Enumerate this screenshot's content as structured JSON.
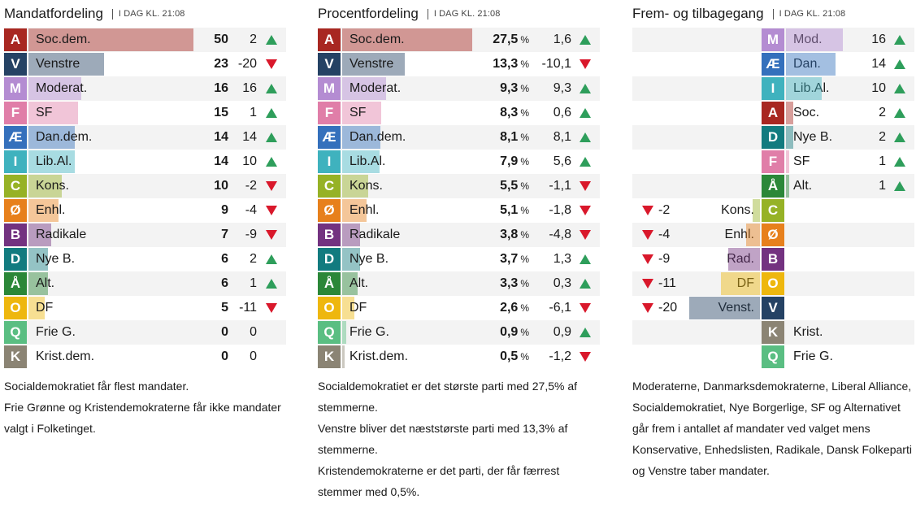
{
  "colors": {
    "A": "#a82721",
    "V": "#254264",
    "M": "#b48cd2",
    "F": "#e07ea8",
    "Æ": "#3470bc",
    "I": "#3fb2be",
    "C": "#96b226",
    "Ø": "#e7801c",
    "B": "#733280",
    "D": "#127b7f",
    "Å": "#2b8738",
    "O": "#eeb70e",
    "Q": "#5abe82",
    "K": "#8b8474",
    "up": "#2e9e5b",
    "down": "#d9182b",
    "text": "#1a1a1a",
    "row_alt": "#f3f3f3"
  },
  "icons": {
    "up": "triangle-up-icon",
    "down": "triangle-down-icon"
  },
  "timestamp": "I DAG KL. 21:08",
  "chart_data": [
    {
      "type": "bar",
      "title": "Mandatfordeling",
      "subtitle": "I DAG KL. 21:08",
      "rows": [
        {
          "letter": "A",
          "name": "Soc.dem.",
          "value": 50,
          "change": 2
        },
        {
          "letter": "V",
          "name": "Venstre",
          "value": 23,
          "change": -20
        },
        {
          "letter": "M",
          "name": "Moderat.",
          "value": 16,
          "change": 16
        },
        {
          "letter": "F",
          "name": "SF",
          "value": 15,
          "change": 1
        },
        {
          "letter": "Æ",
          "name": "Dan.dem.",
          "value": 14,
          "change": 14
        },
        {
          "letter": "I",
          "name": "Lib.Al.",
          "value": 14,
          "change": 10
        },
        {
          "letter": "C",
          "name": "Kons.",
          "value": 10,
          "change": -2
        },
        {
          "letter": "Ø",
          "name": "Enhl.",
          "value": 9,
          "change": -4
        },
        {
          "letter": "B",
          "name": "Radikale",
          "value": 7,
          "change": -9
        },
        {
          "letter": "D",
          "name": "Nye B.",
          "value": 6,
          "change": 2
        },
        {
          "letter": "Å",
          "name": "Alt.",
          "value": 6,
          "change": 1
        },
        {
          "letter": "O",
          "name": "DF",
          "value": 5,
          "change": -11
        },
        {
          "letter": "Q",
          "name": "Frie G.",
          "value": 0,
          "change": 0
        },
        {
          "letter": "K",
          "name": "Krist.dem.",
          "value": 0,
          "change": 0
        }
      ],
      "value_unit": "",
      "xlim": [
        0,
        50
      ],
      "notes": [
        "Socialdemokratiet får flest mandater.",
        "Frie Grønne og Kristendemokraterne får ikke mandater valgt i Folketinget."
      ]
    },
    {
      "type": "bar",
      "title": "Procentfordeling",
      "subtitle": "I DAG KL. 21:08",
      "rows": [
        {
          "letter": "A",
          "name": "Soc.dem.",
          "value": 27.5,
          "change": 1.6
        },
        {
          "letter": "V",
          "name": "Venstre",
          "value": 13.3,
          "change": -10.1
        },
        {
          "letter": "M",
          "name": "Moderat.",
          "value": 9.3,
          "change": 9.3
        },
        {
          "letter": "F",
          "name": "SF",
          "value": 8.3,
          "change": 0.6
        },
        {
          "letter": "Æ",
          "name": "Dan.dem.",
          "value": 8.1,
          "change": 8.1
        },
        {
          "letter": "I",
          "name": "Lib.Al.",
          "value": 7.9,
          "change": 5.6
        },
        {
          "letter": "C",
          "name": "Kons.",
          "value": 5.5,
          "change": -1.1
        },
        {
          "letter": "Ø",
          "name": "Enhl.",
          "value": 5.1,
          "change": -1.8
        },
        {
          "letter": "B",
          "name": "Radikale",
          "value": 3.8,
          "change": -4.8
        },
        {
          "letter": "D",
          "name": "Nye B.",
          "value": 3.7,
          "change": 1.3
        },
        {
          "letter": "Å",
          "name": "Alt.",
          "value": 3.3,
          "change": 0.3
        },
        {
          "letter": "O",
          "name": "DF",
          "value": 2.6,
          "change": -6.1
        },
        {
          "letter": "Q",
          "name": "Frie G.",
          "value": 0.9,
          "change": 0.9
        },
        {
          "letter": "K",
          "name": "Krist.dem.",
          "value": 0.5,
          "change": -1.2
        }
      ],
      "value_unit": "%",
      "xlim": [
        0,
        27.5
      ],
      "notes": [
        "Socialdemokratiet er det største parti med 27,5% af stemmerne.",
        "Venstre bliver det næststørste parti med 13,3% af stemmerne.",
        "Kristendemokraterne er det parti, der får færrest stemmer med 0,5%."
      ]
    },
    {
      "type": "bar",
      "title": "Frem- og tilbagegang",
      "subtitle": "I DAG KL. 21:08",
      "rows": [
        {
          "letter": "M",
          "name": "Mod.",
          "change": 16
        },
        {
          "letter": "Æ",
          "name": "Dan.",
          "change": 14
        },
        {
          "letter": "I",
          "name": "Lib.Al.",
          "change": 10
        },
        {
          "letter": "A",
          "name": "Soc.",
          "change": 2
        },
        {
          "letter": "D",
          "name": "Nye B.",
          "change": 2
        },
        {
          "letter": "F",
          "name": "SF",
          "change": 1
        },
        {
          "letter": "Å",
          "name": "Alt.",
          "change": 1
        },
        {
          "letter": "C",
          "name": "Kons.",
          "change": -2
        },
        {
          "letter": "Ø",
          "name": "Enhl.",
          "change": -4
        },
        {
          "letter": "B",
          "name": "Rad.",
          "change": -9
        },
        {
          "letter": "O",
          "name": "DF",
          "change": -11
        },
        {
          "letter": "V",
          "name": "Venst.",
          "change": -20
        },
        {
          "letter": "K",
          "name": "Krist.",
          "change": 0
        },
        {
          "letter": "Q",
          "name": "Frie G.",
          "change": 0
        }
      ],
      "xlim": [
        -20,
        16
      ],
      "notes": [
        "Moderaterne, Danmarksdemokraterne, Liberal Alliance, Socialdemokratiet, Nye Borgerlige, SF og Alternativet går frem i antallet af mandater ved valget mens Konservative, Enhedslisten, Radikale, Dansk Folkeparti og Venstre taber mandater."
      ]
    }
  ]
}
